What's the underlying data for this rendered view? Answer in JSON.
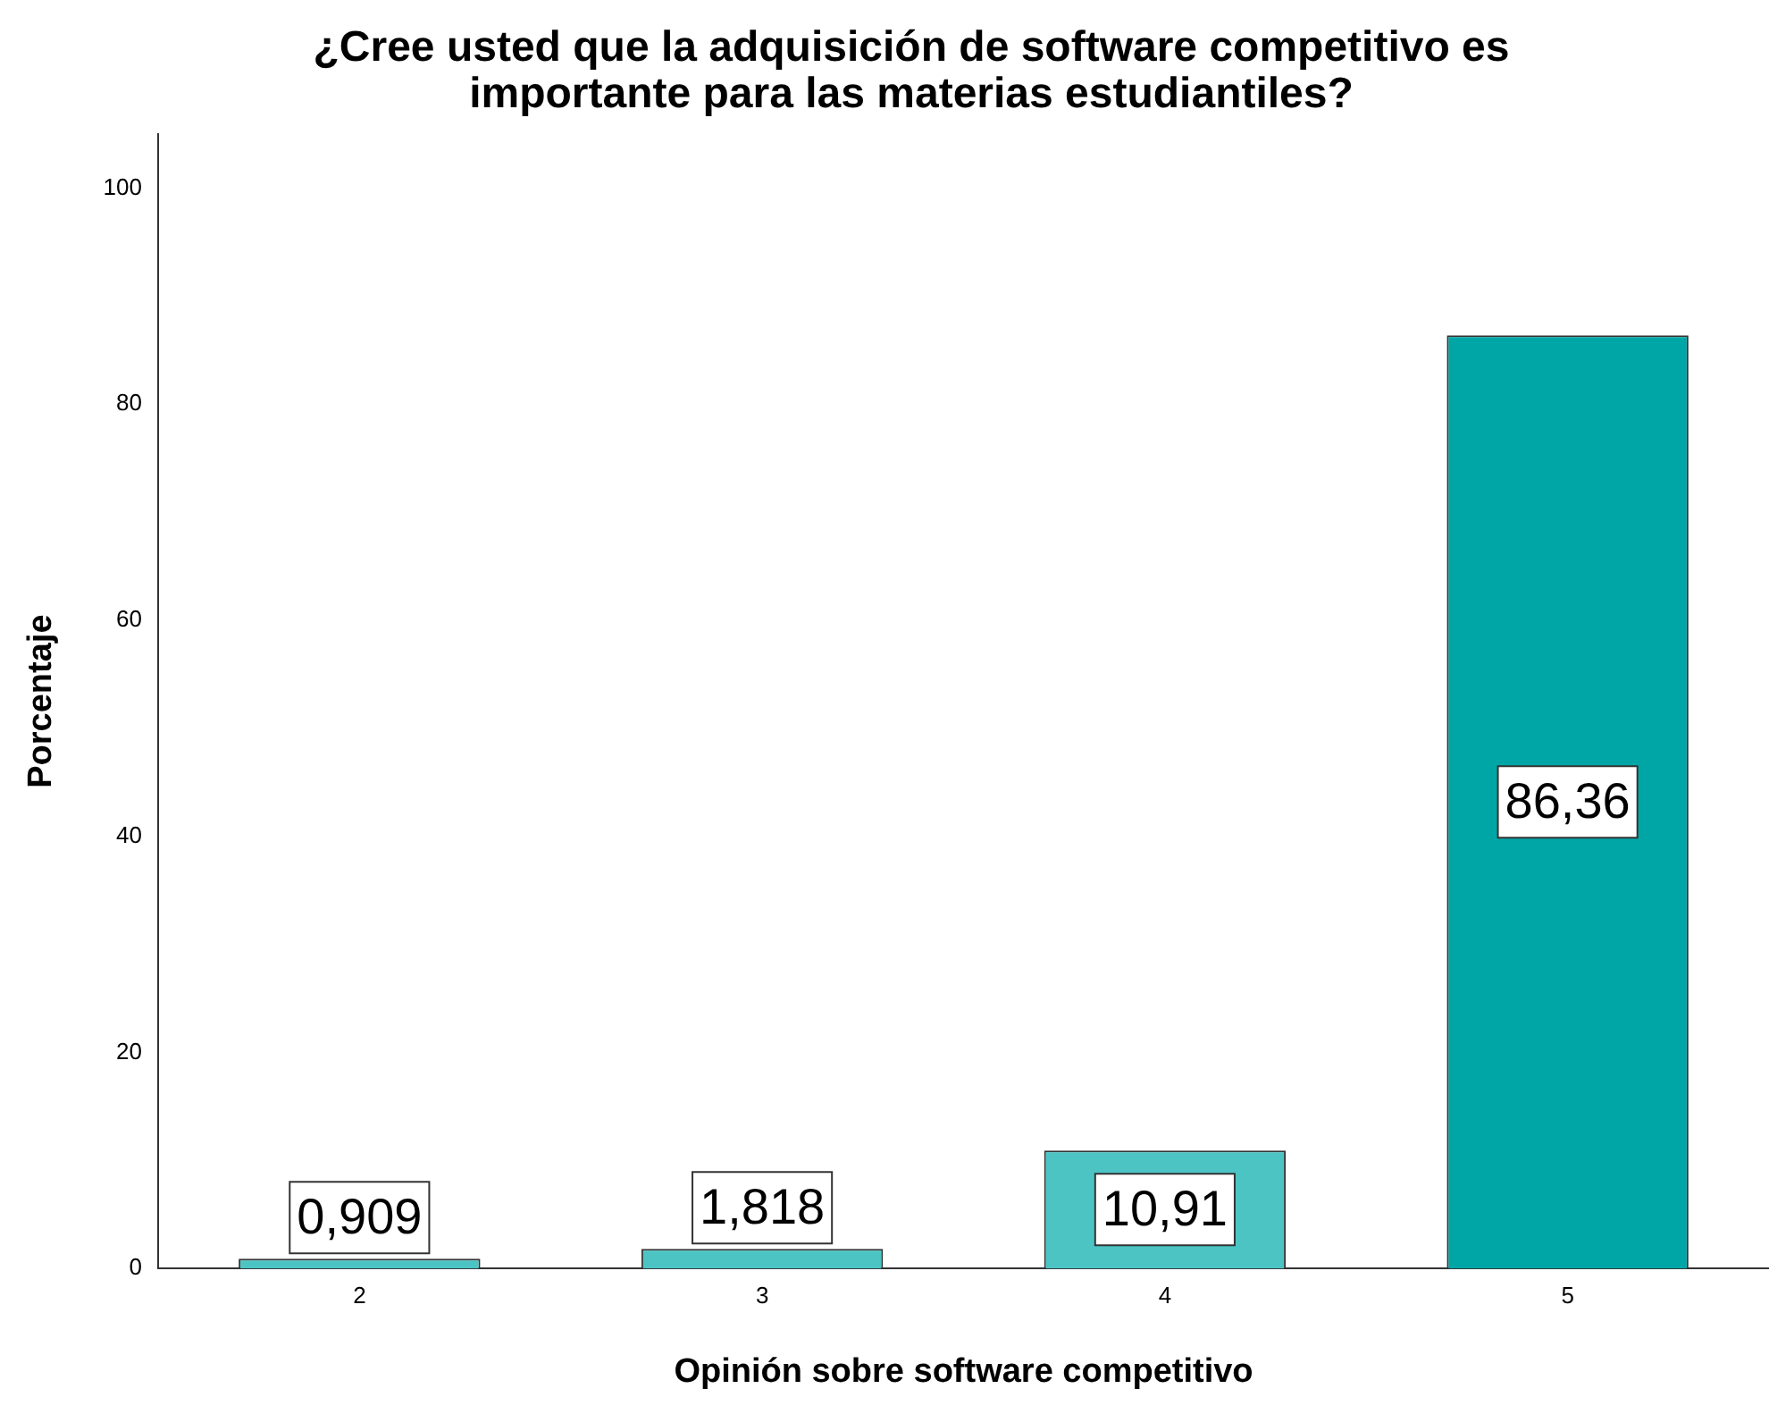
{
  "chart_data": {
    "type": "bar",
    "title": "¿Cree usted que la adquisición de software competitivo es importante para las materias estudiantiles?",
    "xlabel": "Opinión sobre software competitivo",
    "ylabel": "Porcentaje",
    "categories": [
      "2",
      "3",
      "4",
      "5"
    ],
    "values": [
      0.909,
      1.818,
      10.91,
      86.36
    ],
    "colors": [
      "#4cc4c4",
      "#4cc4c4",
      "#4cc4c4",
      "#00a6a6"
    ],
    "value_labels": [
      "0,909",
      "1,818",
      "10,91",
      "86,36"
    ],
    "ylim": [
      0,
      105
    ],
    "yticks": [
      0,
      20,
      40,
      60,
      80,
      100
    ],
    "grid": false,
    "legend": false
  }
}
